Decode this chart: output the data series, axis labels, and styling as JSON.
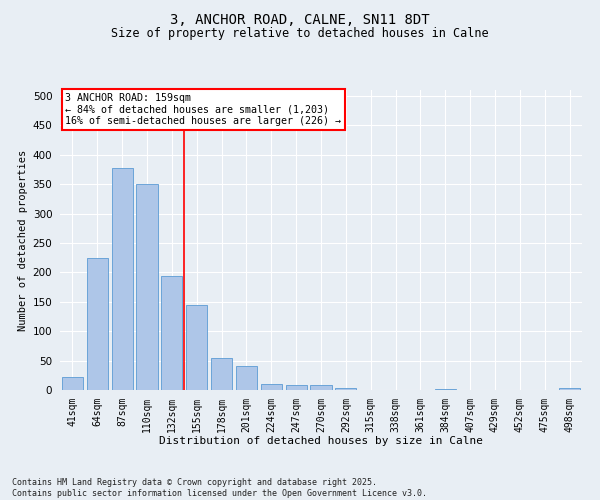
{
  "title_line1": "3, ANCHOR ROAD, CALNE, SN11 8DT",
  "title_line2": "Size of property relative to detached houses in Calne",
  "xlabel": "Distribution of detached houses by size in Calne",
  "ylabel": "Number of detached properties",
  "categories": [
    "41sqm",
    "64sqm",
    "87sqm",
    "110sqm",
    "132sqm",
    "155sqm",
    "178sqm",
    "201sqm",
    "224sqm",
    "247sqm",
    "270sqm",
    "292sqm",
    "315sqm",
    "338sqm",
    "361sqm",
    "384sqm",
    "407sqm",
    "429sqm",
    "452sqm",
    "475sqm",
    "498sqm"
  ],
  "values": [
    22,
    224,
    378,
    350,
    193,
    145,
    55,
    40,
    11,
    8,
    8,
    4,
    0,
    0,
    0,
    1,
    0,
    0,
    0,
    0,
    3
  ],
  "bar_color": "#aec6e8",
  "bar_edgecolor": "#5b9bd5",
  "vline_x_index": 5,
  "vline_color": "red",
  "annotation_text": "3 ANCHOR ROAD: 159sqm\n← 84% of detached houses are smaller (1,203)\n16% of semi-detached houses are larger (226) →",
  "annotation_box_facecolor": "white",
  "annotation_box_edgecolor": "red",
  "ylim": [
    0,
    510
  ],
  "yticks": [
    0,
    50,
    100,
    150,
    200,
    250,
    300,
    350,
    400,
    450,
    500
  ],
  "bg_color": "#e8eef4",
  "grid_color": "white",
  "title_fontsize": 10,
  "subtitle_fontsize": 8.5,
  "footnote": "Contains HM Land Registry data © Crown copyright and database right 2025.\nContains public sector information licensed under the Open Government Licence v3.0."
}
